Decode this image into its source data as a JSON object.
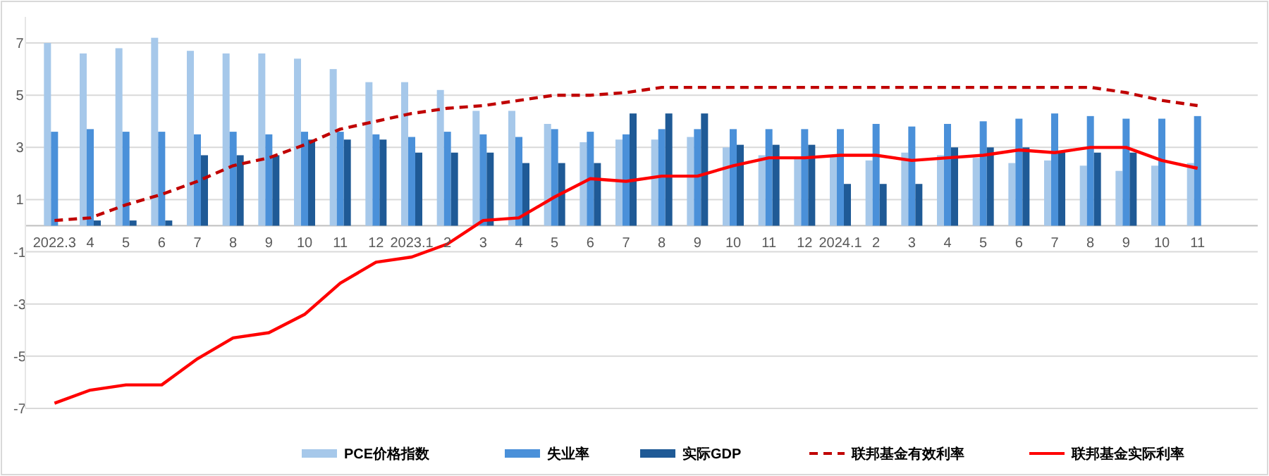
{
  "chart_data": {
    "type": "bar",
    "categories": [
      "2022.3",
      "4",
      "5",
      "6",
      "7",
      "8",
      "9",
      "10",
      "11",
      "12",
      "2023.1",
      "2",
      "3",
      "4",
      "5",
      "6",
      "7",
      "8",
      "9",
      "10",
      "11",
      "12",
      "2024.1",
      "2",
      "3",
      "4",
      "5",
      "6",
      "7",
      "8",
      "9",
      "10",
      "11"
    ],
    "series": [
      {
        "name": "PCE价格指数",
        "color": "#a6c8ea",
        "values": [
          7.0,
          6.6,
          6.8,
          7.2,
          6.7,
          6.6,
          6.6,
          6.4,
          6.0,
          5.5,
          5.5,
          5.2,
          4.4,
          4.4,
          3.9,
          3.2,
          3.3,
          3.3,
          3.4,
          3.0,
          2.7,
          2.6,
          2.7,
          2.5,
          2.8,
          2.7,
          2.6,
          2.4,
          2.5,
          2.3,
          2.1,
          2.3,
          2.4
        ]
      },
      {
        "name": "失业率",
        "color": "#4a90d9",
        "values": [
          3.6,
          3.7,
          3.6,
          3.6,
          3.5,
          3.6,
          3.5,
          3.6,
          3.6,
          3.5,
          3.4,
          3.6,
          3.5,
          3.4,
          3.7,
          3.6,
          3.5,
          3.7,
          3.7,
          3.7,
          3.7,
          3.7,
          3.7,
          3.9,
          3.8,
          3.9,
          4.0,
          4.1,
          4.3,
          4.2,
          4.1,
          4.1,
          4.2
        ]
      },
      {
        "name": "实际GDP",
        "color": "#1f5a96",
        "values": [
          null,
          0.2,
          0.2,
          0.2,
          2.7,
          2.7,
          2.7,
          3.3,
          3.3,
          3.3,
          2.8,
          2.8,
          2.8,
          2.4,
          2.4,
          2.4,
          4.3,
          4.3,
          4.3,
          3.1,
          3.1,
          3.1,
          1.6,
          1.6,
          1.6,
          3.0,
          3.0,
          3.0,
          2.8,
          2.8,
          2.8,
          null,
          null
        ]
      },
      {
        "name": "联邦基金有效利率",
        "type": "line",
        "line_style": "dashed",
        "color": "#c00000",
        "values": [
          0.2,
          0.3,
          0.8,
          1.2,
          1.7,
          2.3,
          2.6,
          3.1,
          3.7,
          4.0,
          4.3,
          4.5,
          4.6,
          4.8,
          5.0,
          5.0,
          5.1,
          5.3,
          5.3,
          5.3,
          5.3,
          5.3,
          5.3,
          5.3,
          5.3,
          5.3,
          5.3,
          5.3,
          5.3,
          5.3,
          5.1,
          4.8,
          4.6
        ]
      },
      {
        "name": "联邦基金实际利率",
        "type": "line",
        "line_style": "solid",
        "color": "#ff0000",
        "values": [
          -6.8,
          -6.3,
          -6.1,
          -6.1,
          -5.1,
          -4.3,
          -4.1,
          -3.4,
          -2.2,
          -1.4,
          -1.2,
          -0.7,
          0.2,
          0.3,
          1.1,
          1.8,
          1.7,
          1.9,
          1.9,
          2.3,
          2.6,
          2.6,
          2.7,
          2.7,
          2.5,
          2.6,
          2.7,
          2.9,
          2.8,
          3.0,
          3.0,
          2.5,
          2.2
        ]
      }
    ],
    "ylim": [
      -7,
      8
    ],
    "yticks": [
      -7,
      -5,
      -3,
      -1,
      1,
      3,
      5,
      7
    ],
    "grid": "y",
    "legend": "bottom"
  }
}
